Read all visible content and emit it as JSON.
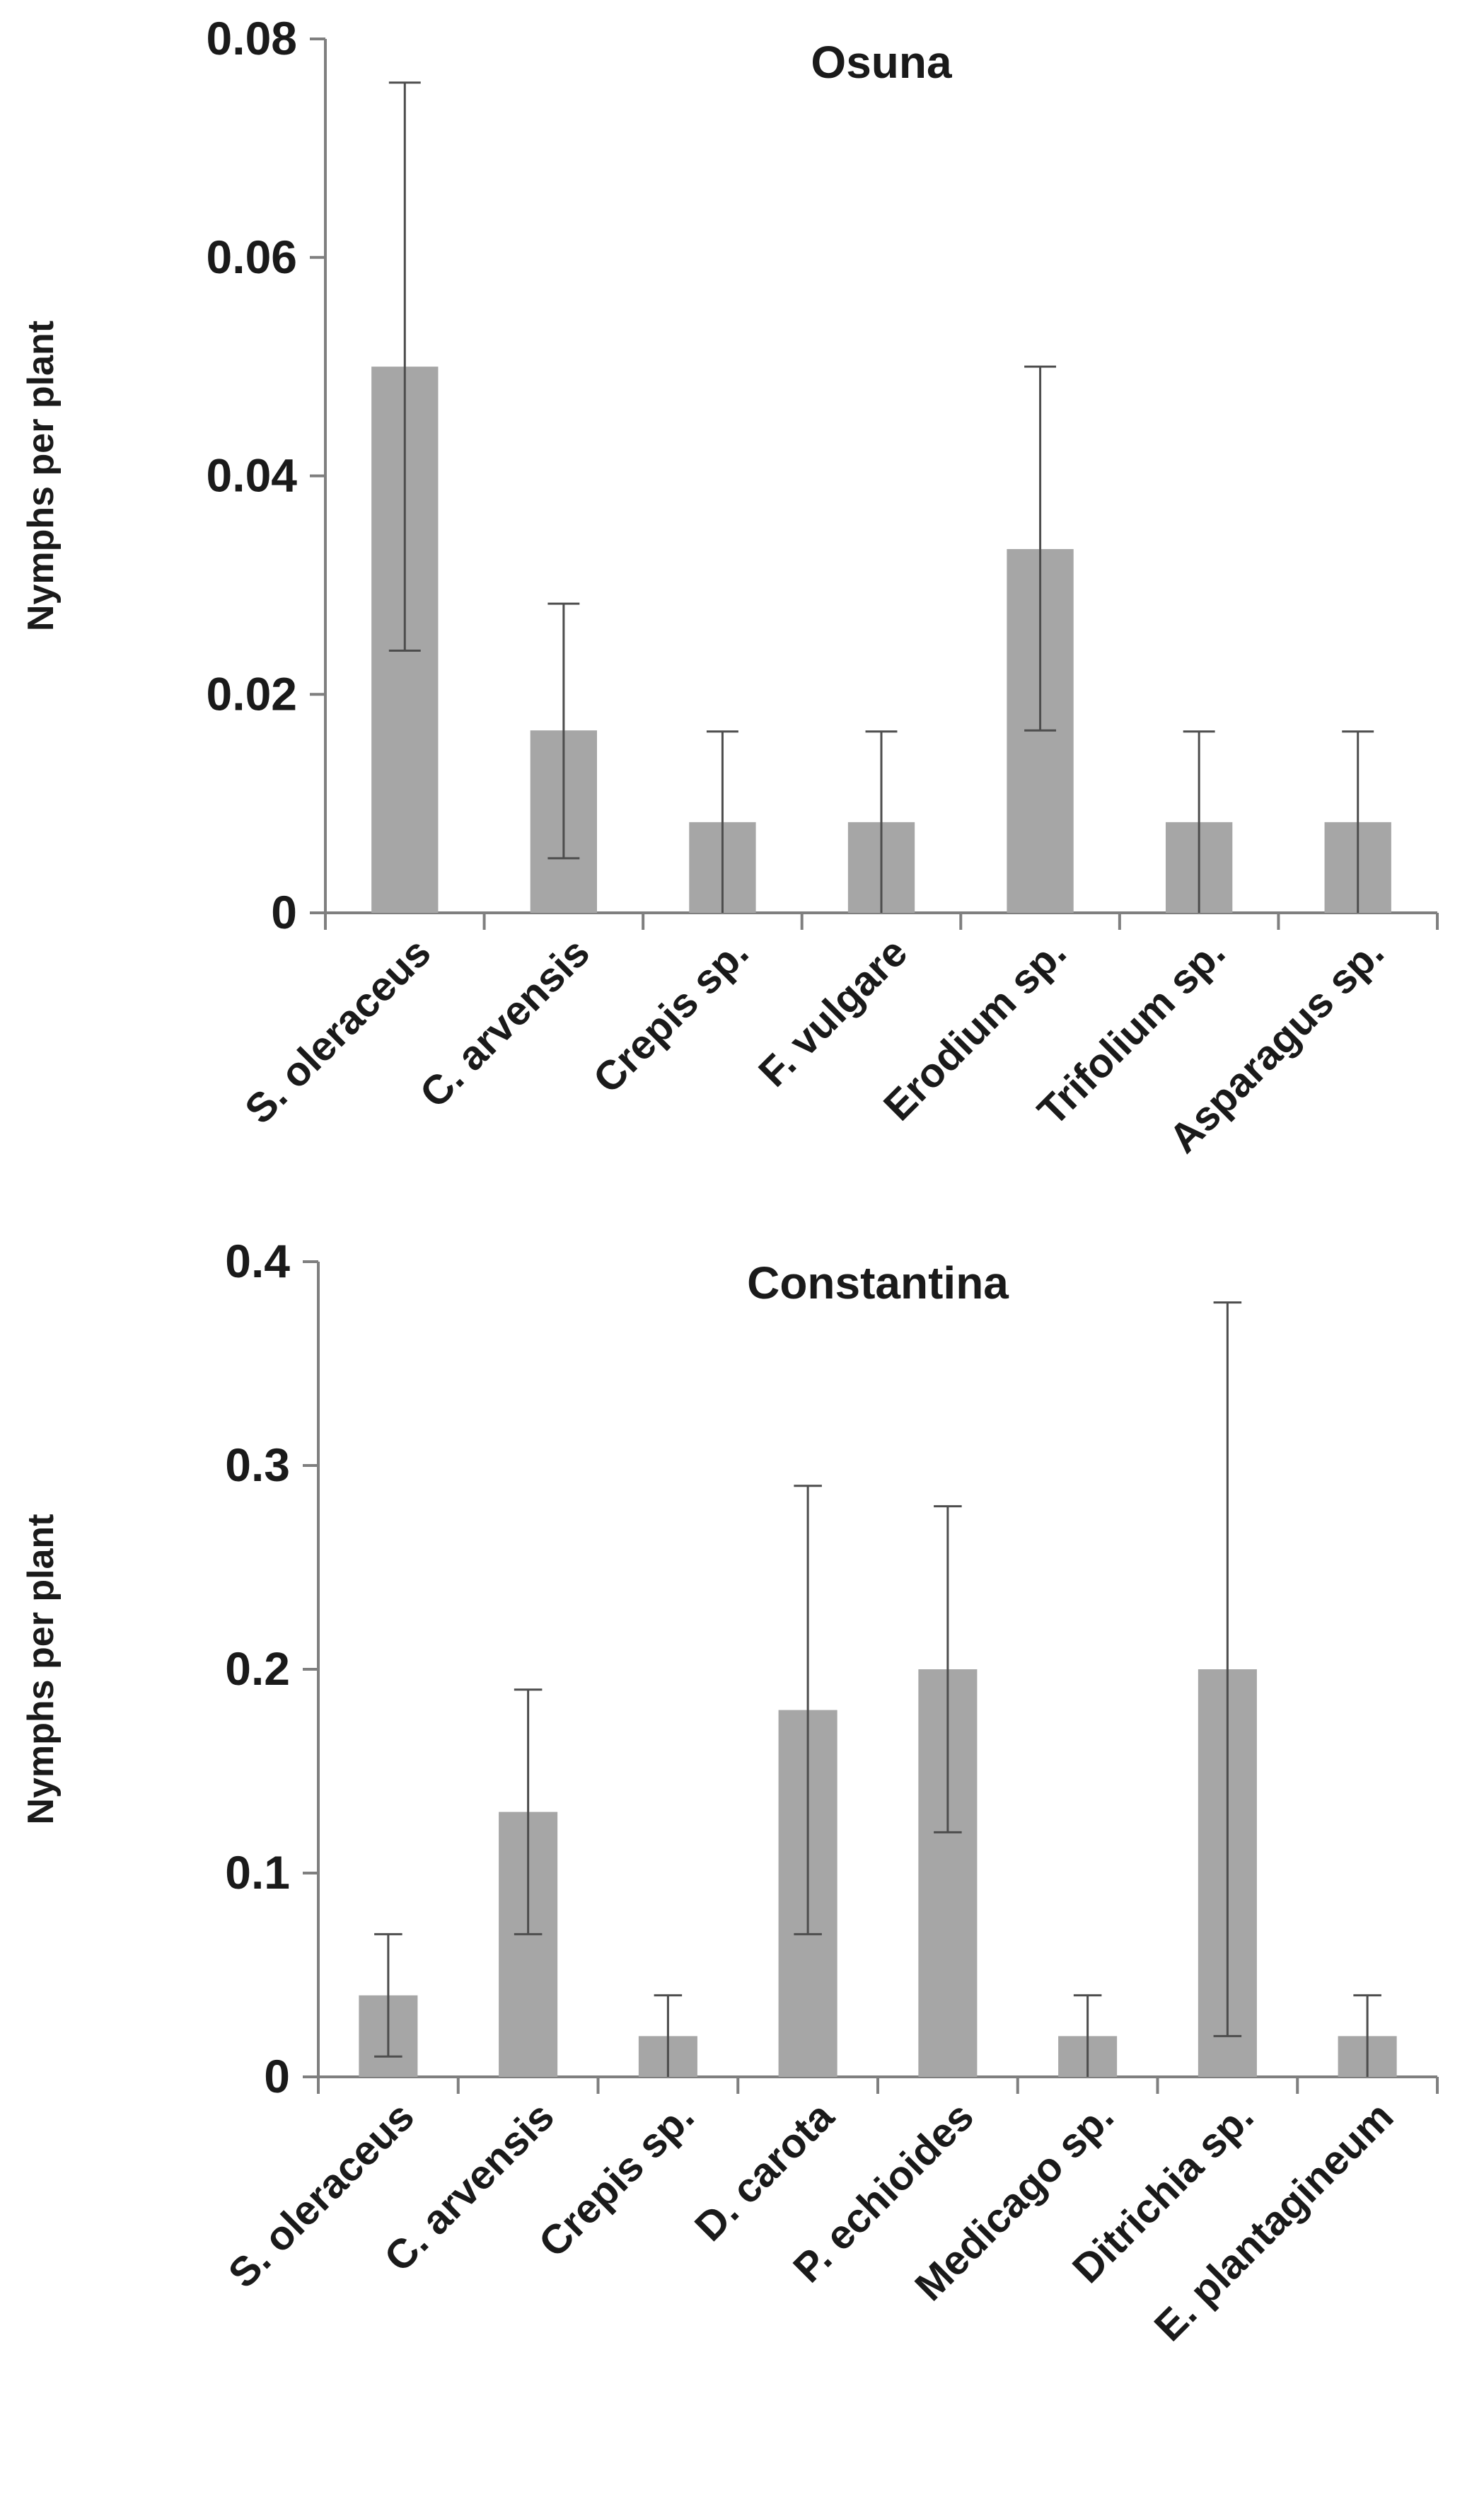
{
  "chart_data": [
    {
      "type": "bar",
      "title": "Osuna",
      "ylabel": "Nymphs per plant",
      "xlabel": "",
      "ylim": [
        0,
        0.08
      ],
      "yticks": [
        0,
        0.02,
        0.04,
        0.06,
        0.08
      ],
      "ytick_labels": [
        "0",
        "0.02",
        "0.04",
        "0.06",
        "0.08"
      ],
      "categories": [
        "S. oleraceus",
        "C. arvensis",
        "Crepis sp.",
        "F. vulgare",
        "Erodium sp.",
        "Trifolium sp.",
        "Asparagus sp."
      ],
      "values": [
        0.05,
        0.0167,
        0.0083,
        0.0083,
        0.0333,
        0.0083,
        0.0083
      ],
      "error_low": [
        0.024,
        0.005,
        0.0,
        0.0,
        0.0167,
        0.0,
        0.0
      ],
      "error_high": [
        0.076,
        0.0283,
        0.0166,
        0.0166,
        0.05,
        0.0166,
        0.0166
      ],
      "grid": false,
      "bar_color": "#a6a6a6"
    },
    {
      "type": "bar",
      "title": "Constantina",
      "ylabel": "Nymphs per plant",
      "xlabel": "",
      "ylim": [
        0,
        0.4
      ],
      "yticks": [
        0,
        0.1,
        0.2,
        0.3,
        0.4
      ],
      "ytick_labels": [
        "0",
        "0.1",
        "0.2",
        "0.3",
        "0.4"
      ],
      "categories": [
        "S. oleraceus",
        "C. arvensis",
        "Crepis sp.",
        "D. carota",
        "P. echioides",
        "Medicago sp.",
        "Ditrichia sp.",
        "E. plantagineum"
      ],
      "values": [
        0.04,
        0.13,
        0.02,
        0.18,
        0.2,
        0.02,
        0.2,
        0.02
      ],
      "error_low": [
        0.01,
        0.07,
        0.0,
        0.07,
        0.12,
        0.0,
        0.02,
        0.0
      ],
      "error_high": [
        0.07,
        0.19,
        0.04,
        0.29,
        0.28,
        0.04,
        0.38,
        0.04
      ],
      "grid": false,
      "bar_color": "#a6a6a6"
    }
  ]
}
